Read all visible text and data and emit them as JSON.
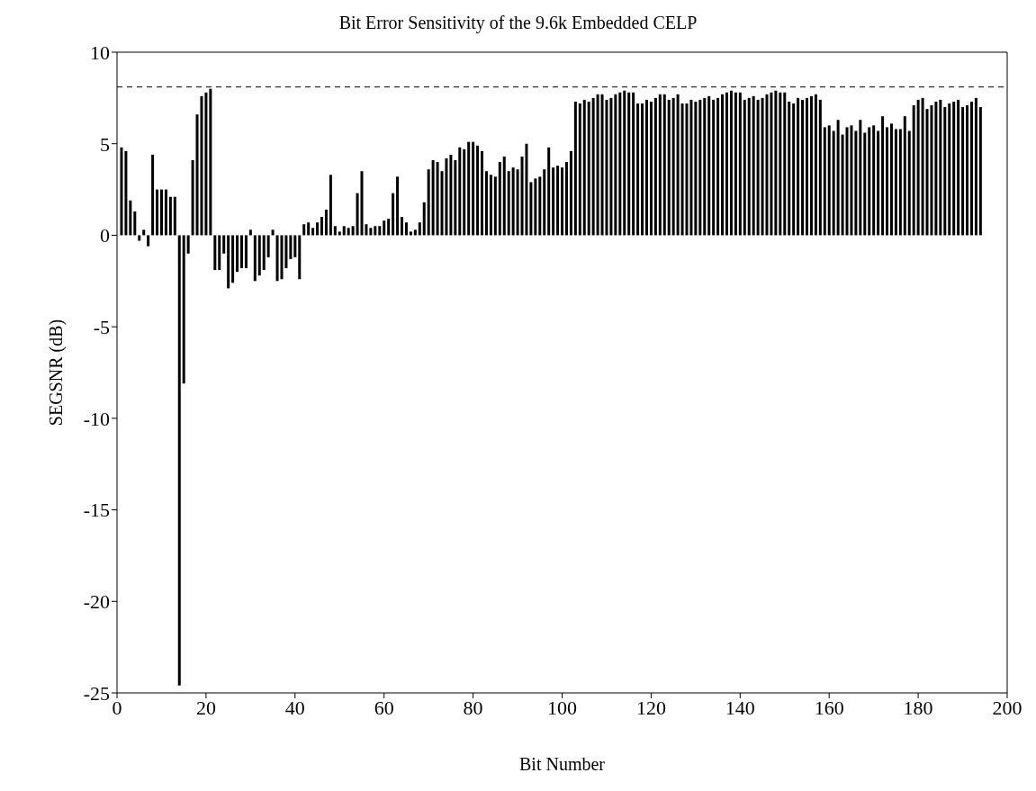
{
  "chart_data": {
    "type": "bar",
    "title": "Bit Error Sensitivity of the 9.6k Embedded CELP",
    "xlabel": "Bit Number",
    "ylabel": "SEGSNR (dB)",
    "x": [
      1,
      2,
      3,
      4,
      5,
      6,
      7,
      8,
      9,
      10,
      11,
      12,
      13,
      14,
      15,
      16,
      17,
      18,
      19,
      20,
      21,
      22,
      23,
      24,
      25,
      26,
      27,
      28,
      29,
      30,
      31,
      32,
      33,
      34,
      35,
      36,
      37,
      38,
      39,
      40,
      41,
      42,
      43,
      44,
      45,
      46,
      47,
      48,
      49,
      50,
      51,
      52,
      53,
      54,
      55,
      56,
      57,
      58,
      59,
      60,
      61,
      62,
      63,
      64,
      65,
      66,
      67,
      68,
      69,
      70,
      71,
      72,
      73,
      74,
      75,
      76,
      77,
      78,
      79,
      80,
      81,
      82,
      83,
      84,
      85,
      86,
      87,
      88,
      89,
      90,
      91,
      92,
      93,
      94,
      95,
      96,
      97,
      98,
      99,
      100,
      101,
      102,
      103,
      104,
      105,
      106,
      107,
      108,
      109,
      110,
      111,
      112,
      113,
      114,
      115,
      116,
      117,
      118,
      119,
      120,
      121,
      122,
      123,
      124,
      125,
      126,
      127,
      128,
      129,
      130,
      131,
      132,
      133,
      134,
      135,
      136,
      137,
      138,
      139,
      140,
      141,
      142,
      143,
      144,
      145,
      146,
      147,
      148,
      149,
      150,
      151,
      152,
      153,
      154,
      155,
      156,
      157,
      158,
      159,
      160,
      161,
      162,
      163,
      164,
      165,
      166,
      167,
      168,
      169,
      170,
      171,
      172,
      173,
      174,
      175,
      176,
      177,
      178,
      179,
      180,
      181,
      182,
      183,
      184,
      185,
      186,
      187,
      188,
      189,
      190,
      191,
      192,
      193,
      194
    ],
    "values": [
      4.8,
      4.6,
      1.9,
      1.3,
      -0.3,
      0.3,
      -0.6,
      4.4,
      2.5,
      2.5,
      2.5,
      2.1,
      2.1,
      -24.6,
      -8.1,
      -1.0,
      4.1,
      6.6,
      7.6,
      7.8,
      8.0,
      -1.9,
      -1.9,
      -1.0,
      -2.9,
      -2.6,
      -2.0,
      -1.8,
      -1.8,
      0.3,
      -2.5,
      -2.2,
      -1.9,
      -1.2,
      0.3,
      -2.5,
      -2.4,
      -1.8,
      -1.3,
      -1.2,
      -2.4,
      0.6,
      0.7,
      0.4,
      0.7,
      1.0,
      1.4,
      3.3,
      0.5,
      0.2,
      0.5,
      0.4,
      0.5,
      2.3,
      3.5,
      0.6,
      0.4,
      0.5,
      0.5,
      0.8,
      0.9,
      2.3,
      3.2,
      1.0,
      0.7,
      0.2,
      0.3,
      0.7,
      1.8,
      3.6,
      4.1,
      4.0,
      3.5,
      4.2,
      4.4,
      4.1,
      4.8,
      4.7,
      5.1,
      5.1,
      4.9,
      4.6,
      3.5,
      3.3,
      3.2,
      4.0,
      4.3,
      3.5,
      3.7,
      3.6,
      4.3,
      5.0,
      2.9,
      3.1,
      3.2,
      3.6,
      4.8,
      3.7,
      3.8,
      3.7,
      4.0,
      4.6,
      7.3,
      7.2,
      7.4,
      7.3,
      7.5,
      7.7,
      7.7,
      7.4,
      7.5,
      7.7,
      7.8,
      7.9,
      7.8,
      7.8,
      7.2,
      7.2,
      7.4,
      7.3,
      7.5,
      7.7,
      7.7,
      7.4,
      7.5,
      7.7,
      7.2,
      7.2,
      7.4,
      7.3,
      7.4,
      7.5,
      7.6,
      7.4,
      7.5,
      7.7,
      7.8,
      7.9,
      7.8,
      7.8,
      7.4,
      7.5,
      7.6,
      7.4,
      7.5,
      7.7,
      7.8,
      7.9,
      7.8,
      7.8,
      7.3,
      7.2,
      7.5,
      7.4,
      7.5,
      7.6,
      7.7,
      7.4,
      5.9,
      6.0,
      5.7,
      6.3,
      5.5,
      5.9,
      6.0,
      5.7,
      6.3,
      5.6,
      5.9,
      6.0,
      5.7,
      6.5,
      5.9,
      6.1,
      5.8,
      5.8,
      6.5,
      5.7,
      7.1,
      7.4,
      7.5,
      6.9,
      7.1,
      7.3,
      7.4,
      7.0,
      7.2,
      7.3,
      7.4,
      7.0,
      7.1,
      7.3,
      7.5,
      7.0
    ],
    "color": "#000000",
    "xlim": [
      0,
      200
    ],
    "xticks": [
      0,
      20,
      40,
      60,
      80,
      100,
      120,
      140,
      160,
      180,
      200
    ],
    "ylim": [
      -25,
      10
    ],
    "yticks": [
      -25,
      -20,
      -15,
      -10,
      -5,
      0,
      5,
      10
    ],
    "ref_lines": [
      {
        "axis": "y",
        "value": 8.1,
        "color": "#000000",
        "line_style": "dashed"
      }
    ]
  }
}
